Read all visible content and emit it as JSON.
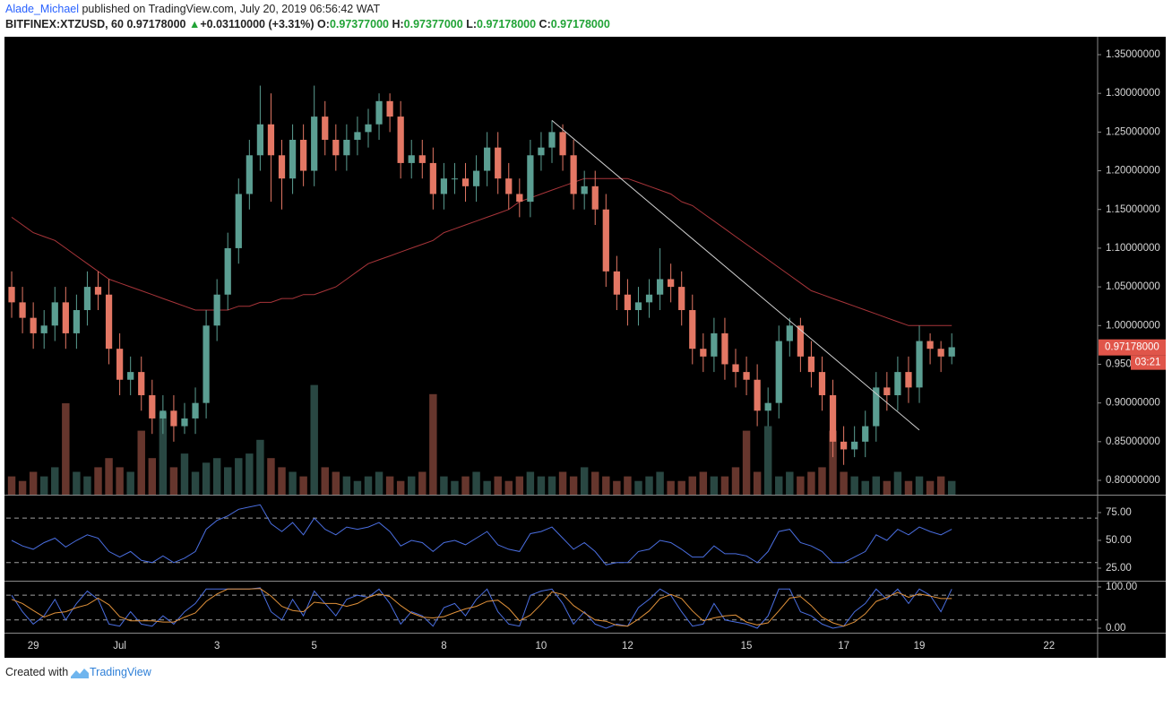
{
  "header": {
    "author": "Alade_Michael",
    "published": "published on TradingView.com, July 20, 2019 06:56:42 WAT",
    "symbol": "BITFINEX:XTZUSD, 60",
    "last": "0.97178000",
    "arrow": "▲",
    "change": "+0.03110000 (+3.31%)",
    "o_label": "O:",
    "o": "0.97377000",
    "h_label": "H:",
    "h": "0.97377000",
    "l_label": "L:",
    "l": "0.97178000",
    "c_label": "C:",
    "c": "0.97178000"
  },
  "footer": {
    "created": "Created with",
    "brand": "TradingView"
  },
  "chart_data": [
    {
      "type": "candlestick",
      "categories": [
        null,
        null,
        "29",
        null,
        null,
        null,
        null,
        null,
        null,
        null,
        "Jul",
        null,
        null,
        null,
        null,
        null,
        null,
        null,
        null,
        "3",
        null,
        null,
        null,
        null,
        null,
        null,
        null,
        null,
        "5",
        null,
        null,
        null,
        null,
        null,
        null,
        null,
        null,
        null,
        null,
        null,
        "8",
        null,
        null,
        null,
        null,
        null,
        null,
        null,
        null,
        "10",
        null,
        null,
        null,
        null,
        null,
        null,
        null,
        "12",
        null,
        null,
        null,
        null,
        null,
        null,
        null,
        null,
        null,
        null,
        "15",
        null,
        null,
        null,
        null,
        null,
        null,
        null,
        null,
        "17",
        null,
        null,
        null,
        null,
        null,
        null,
        "19",
        null,
        null,
        null,
        null,
        null,
        null,
        null,
        null,
        null,
        null,
        null,
        "22",
        null,
        null,
        null,
        null
      ],
      "open": [
        1.05,
        1.03,
        1.01,
        0.99,
        1.0,
        1.03,
        0.99,
        1.02,
        1.05,
        1.04,
        0.97,
        0.93,
        0.94,
        0.91,
        0.88,
        0.89,
        0.87,
        0.88,
        0.9,
        1.0,
        1.04,
        1.1,
        1.17,
        1.22,
        1.26,
        1.22,
        1.19,
        1.24,
        1.2,
        1.27,
        1.24,
        1.22,
        1.24,
        1.25,
        1.26,
        1.29,
        1.27,
        1.21,
        1.22,
        1.21,
        1.17,
        1.19,
        1.19,
        1.18,
        1.2,
        1.23,
        1.19,
        1.17,
        1.16,
        1.22,
        1.23,
        1.25,
        1.22,
        1.17,
        1.18,
        1.15,
        1.07,
        1.04,
        1.02,
        1.03,
        1.04,
        1.06,
        1.05,
        1.02,
        0.97,
        0.96,
        0.99,
        0.95,
        0.94,
        0.93,
        0.89,
        0.9,
        0.98,
        1.0,
        0.96,
        0.94,
        0.91,
        0.85,
        0.84,
        0.85,
        0.87,
        0.92,
        0.91,
        0.94,
        0.92,
        0.98,
        0.97,
        0.96,
        null,
        null,
        null,
        null,
        null,
        null,
        null,
        null,
        null,
        null,
        null,
        null,
        null
      ],
      "high": [
        1.07,
        1.05,
        1.03,
        1.02,
        1.05,
        1.05,
        1.04,
        1.07,
        1.07,
        1.06,
        0.99,
        0.96,
        0.96,
        0.93,
        0.91,
        0.91,
        0.9,
        0.92,
        1.02,
        1.06,
        1.12,
        1.19,
        1.24,
        1.31,
        1.3,
        1.24,
        1.26,
        1.26,
        1.31,
        1.29,
        1.26,
        1.26,
        1.27,
        1.28,
        1.3,
        1.3,
        1.29,
        1.24,
        1.24,
        1.23,
        1.21,
        1.21,
        1.21,
        1.22,
        1.25,
        1.25,
        1.21,
        1.19,
        1.24,
        1.25,
        1.265,
        1.26,
        1.24,
        1.2,
        1.2,
        1.17,
        1.09,
        1.06,
        1.05,
        1.06,
        1.1,
        1.08,
        1.07,
        1.04,
        0.99,
        1.01,
        1.01,
        0.97,
        0.96,
        0.95,
        0.92,
        1.0,
        1.01,
        1.01,
        0.98,
        0.96,
        0.93,
        0.87,
        0.87,
        0.89,
        0.94,
        0.94,
        0.96,
        0.96,
        1.0,
        0.99,
        0.98,
        0.99,
        null,
        null,
        null,
        null,
        null,
        null,
        null,
        null,
        null,
        null,
        null,
        null,
        null
      ],
      "low": [
        1.01,
        0.99,
        0.97,
        0.97,
        0.98,
        0.97,
        0.97,
        1.0,
        1.02,
        0.95,
        0.91,
        0.91,
        0.89,
        0.86,
        0.86,
        0.85,
        0.86,
        0.86,
        0.88,
        0.98,
        1.02,
        1.08,
        1.15,
        1.2,
        1.16,
        1.15,
        1.17,
        1.18,
        1.18,
        1.22,
        1.2,
        1.2,
        1.22,
        1.23,
        1.24,
        1.25,
        1.19,
        1.19,
        1.19,
        1.15,
        1.15,
        1.17,
        1.16,
        1.16,
        1.18,
        1.17,
        1.15,
        1.14,
        1.14,
        1.2,
        1.21,
        1.2,
        1.15,
        1.15,
        1.13,
        1.05,
        1.02,
        1.0,
        1.0,
        1.01,
        1.02,
        1.03,
        1.0,
        0.95,
        0.94,
        0.94,
        0.93,
        0.92,
        0.91,
        0.87,
        0.87,
        0.88,
        0.96,
        0.94,
        0.92,
        0.89,
        0.83,
        0.82,
        0.83,
        0.83,
        0.85,
        0.89,
        0.89,
        0.9,
        0.9,
        0.95,
        0.94,
        0.95,
        null,
        null,
        null,
        null,
        null,
        null,
        null,
        null,
        null,
        null,
        null,
        null,
        null
      ],
      "close": [
        1.03,
        1.01,
        0.99,
        1.0,
        1.03,
        0.99,
        1.02,
        1.05,
        1.04,
        0.97,
        0.93,
        0.94,
        0.91,
        0.88,
        0.89,
        0.87,
        0.88,
        0.9,
        1.0,
        1.04,
        1.1,
        1.17,
        1.22,
        1.26,
        1.22,
        1.19,
        1.24,
        1.2,
        1.27,
        1.24,
        1.22,
        1.24,
        1.25,
        1.26,
        1.29,
        1.27,
        1.21,
        1.22,
        1.21,
        1.17,
        1.19,
        1.19,
        1.18,
        1.2,
        1.23,
        1.19,
        1.17,
        1.16,
        1.22,
        1.23,
        1.25,
        1.22,
        1.17,
        1.18,
        1.15,
        1.07,
        1.04,
        1.02,
        1.03,
        1.04,
        1.06,
        1.05,
        1.02,
        0.97,
        0.96,
        0.99,
        0.95,
        0.94,
        0.93,
        0.89,
        0.9,
        0.98,
        1.0,
        0.96,
        0.94,
        0.91,
        0.85,
        0.84,
        0.85,
        0.87,
        0.92,
        0.91,
        0.94,
        0.92,
        0.98,
        0.97,
        0.96,
        0.972,
        null,
        null,
        null,
        null,
        null,
        null,
        null,
        null,
        null,
        null,
        null,
        null,
        null
      ],
      "up_color": "#5b9e92",
      "down_color": "#e37764",
      "volume": [
        4,
        3,
        5,
        4,
        6,
        20,
        5,
        4,
        6,
        8,
        6,
        5,
        14,
        8,
        18,
        6,
        9,
        5,
        7,
        8,
        6,
        8,
        9,
        12,
        8,
        6,
        5,
        4,
        24,
        6,
        5,
        4,
        3,
        4,
        5,
        4,
        3,
        4,
        5,
        22,
        4,
        3,
        4,
        5,
        3,
        4,
        3,
        4,
        5,
        4,
        4,
        5,
        4,
        6,
        5,
        4,
        3,
        4,
        3,
        4,
        5,
        3,
        3,
        4,
        5,
        4,
        4,
        6,
        14,
        5,
        15,
        4,
        5,
        4,
        5,
        6,
        14,
        5,
        4,
        3,
        4,
        3,
        5,
        3,
        4,
        3,
        4,
        3,
        null,
        null,
        null,
        null,
        null,
        null,
        null,
        null,
        null,
        null,
        null,
        null,
        null
      ],
      "vlim": [
        0,
        100
      ],
      "ma": [
        1.14,
        1.13,
        1.12,
        1.115,
        1.11,
        1.1,
        1.09,
        1.08,
        1.07,
        1.06,
        1.055,
        1.05,
        1.045,
        1.04,
        1.035,
        1.03,
        1.025,
        1.02,
        1.02,
        1.02,
        1.02,
        1.025,
        1.025,
        1.03,
        1.03,
        1.035,
        1.035,
        1.04,
        1.04,
        1.045,
        1.05,
        1.06,
        1.07,
        1.08,
        1.085,
        1.09,
        1.095,
        1.1,
        1.105,
        1.11,
        1.12,
        1.125,
        1.13,
        1.135,
        1.14,
        1.145,
        1.15,
        1.16,
        1.165,
        1.17,
        1.175,
        1.18,
        1.185,
        1.19,
        1.19,
        1.19,
        1.19,
        1.19,
        1.185,
        1.18,
        1.175,
        1.17,
        1.16,
        1.155,
        1.145,
        1.135,
        1.125,
        1.115,
        1.105,
        1.095,
        1.085,
        1.075,
        1.065,
        1.055,
        1.045,
        1.04,
        1.035,
        1.03,
        1.025,
        1.02,
        1.015,
        1.01,
        1.005,
        1.0,
        1.0,
        1.0,
        1.0,
        1.0,
        null,
        null,
        null,
        null,
        null,
        null,
        null,
        null,
        null,
        null,
        null,
        null,
        null
      ],
      "ma_color": "#a8353a",
      "trendline": {
        "x": [
          50,
          84
        ],
        "y": [
          1.265,
          0.865
        ],
        "color": "#cfcfcf"
      },
      "ylim": [
        0.7815,
        1.372
      ],
      "yticks": [
        {
          "value": 0.8,
          "label": "0.80000000"
        },
        {
          "value": 0.85,
          "label": "0.85000000"
        },
        {
          "value": 0.9,
          "label": "0.90000000"
        },
        {
          "value": 0.95,
          "label": "0.95000000"
        },
        {
          "value": 1.0,
          "label": "1.00000000"
        },
        {
          "value": 1.05,
          "label": "1.05000000"
        },
        {
          "value": 1.1,
          "label": "1.10000000"
        },
        {
          "value": 1.15,
          "label": "1.15000000"
        },
        {
          "value": 1.2,
          "label": "1.20000000"
        },
        {
          "value": 1.25,
          "label": "1.25000000"
        },
        {
          "value": 1.3,
          "label": "1.30000000"
        },
        {
          "value": 1.35,
          "label": "1.35000000"
        }
      ],
      "last": {
        "value": 0.97178,
        "label": "0.97178000"
      },
      "countdown": "03:21",
      "last_color": "#e0554a"
    },
    {
      "type": "line",
      "series": [
        {
          "color": "#4a6ee0",
          "values": [
            50,
            45,
            42,
            48,
            52,
            44,
            50,
            55,
            52,
            40,
            35,
            40,
            32,
            30,
            36,
            30,
            34,
            40,
            60,
            68,
            72,
            78,
            80,
            82,
            65,
            58,
            66,
            55,
            70,
            60,
            55,
            62,
            60,
            62,
            66,
            58,
            45,
            50,
            48,
            40,
            48,
            50,
            46,
            52,
            58,
            46,
            42,
            40,
            56,
            58,
            62,
            52,
            42,
            48,
            40,
            28,
            30,
            30,
            40,
            42,
            50,
            48,
            42,
            35,
            35,
            45,
            38,
            38,
            36,
            30,
            40,
            58,
            60,
            48,
            45,
            40,
            30,
            30,
            35,
            40,
            55,
            50,
            60,
            55,
            62,
            58,
            55,
            60,
            null,
            null,
            null,
            null,
            null,
            null,
            null,
            null,
            null,
            null,
            null,
            null,
            null
          ]
        }
      ],
      "hlines": [
        70,
        30
      ],
      "ylim": [
        13.7,
        90.3
      ],
      "yticks": [
        {
          "value": 25,
          "label": "25.00"
        },
        {
          "value": 50,
          "label": "50.00"
        },
        {
          "value": 75,
          "label": "75.00"
        }
      ]
    },
    {
      "type": "line",
      "series": [
        {
          "color": "#4a6ee0",
          "values": [
            80,
            40,
            10,
            30,
            70,
            20,
            60,
            90,
            70,
            10,
            5,
            40,
            10,
            5,
            30,
            10,
            40,
            60,
            95,
            95,
            95,
            95,
            95,
            98,
            40,
            20,
            70,
            30,
            90,
            60,
            30,
            70,
            80,
            75,
            95,
            60,
            10,
            40,
            30,
            5,
            50,
            60,
            30,
            70,
            95,
            40,
            10,
            5,
            80,
            90,
            95,
            60,
            10,
            40,
            10,
            0,
            10,
            5,
            50,
            70,
            95,
            80,
            40,
            5,
            10,
            60,
            20,
            15,
            10,
            0,
            30,
            95,
            95,
            40,
            30,
            10,
            0,
            5,
            40,
            60,
            95,
            70,
            95,
            60,
            95,
            80,
            40,
            95,
            null,
            null,
            null,
            null,
            null,
            null,
            null,
            null,
            null,
            null,
            null,
            null,
            null
          ]
        },
        {
          "color": "#e0913a",
          "values": [
            70,
            60,
            43,
            27,
            37,
            40,
            50,
            57,
            73,
            57,
            28,
            18,
            18,
            18,
            15,
            15,
            27,
            37,
            65,
            83,
            95,
            95,
            95,
            96,
            78,
            53,
            43,
            40,
            63,
            60,
            60,
            53,
            60,
            75,
            83,
            77,
            55,
            37,
            27,
            25,
            28,
            38,
            47,
            53,
            65,
            68,
            48,
            18,
            32,
            58,
            88,
            82,
            55,
            37,
            20,
            17,
            7,
            5,
            22,
            42,
            72,
            82,
            72,
            42,
            18,
            25,
            30,
            32,
            15,
            8,
            13,
            42,
            73,
            77,
            55,
            27,
            13,
            5,
            15,
            35,
            65,
            75,
            87,
            75,
            83,
            78,
            72,
            72,
            null,
            null,
            null,
            null,
            null,
            null,
            null,
            null,
            null,
            null,
            null,
            null,
            null
          ]
        }
      ],
      "hlines": [
        80,
        20
      ],
      "ylim": [
        -8.7,
        113
      ],
      "yticks": [
        {
          "value": 0,
          "label": "0.00"
        },
        {
          "value": 100,
          "label": "100.00"
        }
      ]
    }
  ]
}
